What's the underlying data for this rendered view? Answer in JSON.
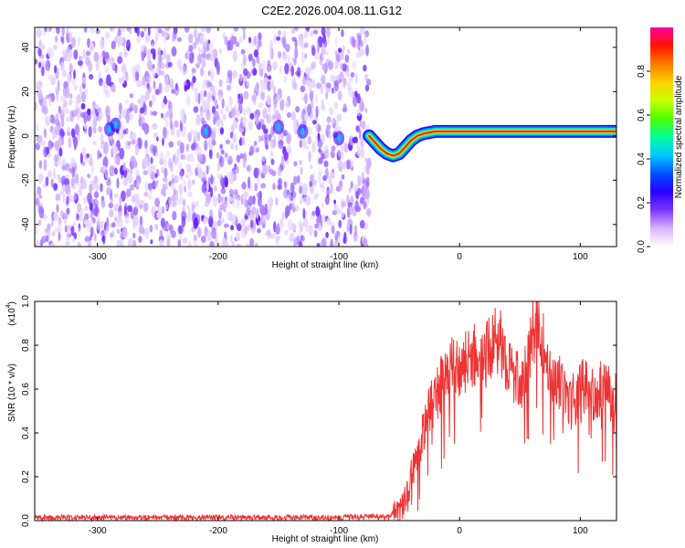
{
  "title": "C2E2.2026.004.08.11.G12",
  "chart_data": [
    {
      "type": "heatmap",
      "xlabel": "Height of straight line (km)",
      "ylabel": "Frequency (Hz)",
      "xlim": [
        -352,
        130
      ],
      "ylim": [
        -50,
        49
      ],
      "xticks": [
        -300,
        -200,
        -100,
        0,
        100
      ],
      "yticks": [
        -40,
        -20,
        0,
        20,
        40
      ],
      "colorbar": {
        "label": "Normalized spectral amplitude",
        "range": [
          0,
          1
        ],
        "ticks": [
          "0.0",
          "0.2",
          "0.4",
          "0.6",
          "0.8"
        ],
        "colors": [
          "#ffffff",
          "#d7b5ff",
          "#7a36ff",
          "#2a00ff",
          "#0050ff",
          "#00c8ff",
          "#00ff9a",
          "#4dff00",
          "#c8ff00",
          "#ffd200",
          "#ff7a00",
          "#ff1400",
          "#ff00a0"
        ]
      },
      "noise_region_x": [
        -352,
        -75
      ],
      "signal_trace": {
        "x": [
          -75,
          -70,
          -65,
          -60,
          -55,
          -50,
          -45,
          -40,
          -35,
          -30,
          -20,
          -10,
          0,
          20,
          40,
          60,
          80,
          100,
          130
        ],
        "freq": [
          0,
          -3,
          -6,
          -8,
          -9,
          -8,
          -5,
          -2,
          0,
          1,
          2,
          2,
          2,
          2,
          2,
          2,
          2,
          2,
          2
        ]
      }
    },
    {
      "type": "line",
      "xlabel": "Height of straight line (km)",
      "ylabel": "SNR (10 * v/v)",
      "multiplier_label": "(x10",
      "multiplier_exp": "4",
      "xlim": [
        -352,
        130
      ],
      "ylim": [
        0,
        1
      ],
      "xticks": [
        -300,
        -200,
        -100,
        0,
        100
      ],
      "yticks": [
        "0.0",
        "0.2",
        "0.4",
        "0.6",
        "0.8",
        "1.0"
      ],
      "series": [
        {
          "color": "#ee3333",
          "envelope": {
            "x": [
              -352,
              -100,
              -60,
              -50,
              -45,
              -40,
              -35,
              -30,
              -25,
              -20,
              -15,
              -10,
              -5,
              0,
              5,
              10,
              15,
              20,
              25,
              30,
              35,
              40,
              45,
              50,
              55,
              60,
              65,
              70,
              75,
              80,
              85,
              90,
              95,
              100,
              105,
              110,
              115,
              120,
              125,
              130
            ],
            "y": [
              0.015,
              0.015,
              0.02,
              0.04,
              0.1,
              0.2,
              0.3,
              0.4,
              0.5,
              0.58,
              0.62,
              0.68,
              0.7,
              0.68,
              0.72,
              0.74,
              0.76,
              0.74,
              0.78,
              0.82,
              0.8,
              0.72,
              0.66,
              0.62,
              0.68,
              0.85,
              0.93,
              0.78,
              0.68,
              0.66,
              0.6,
              0.5,
              0.58,
              0.6,
              0.62,
              0.58,
              0.6,
              0.62,
              0.58,
              0.6
            ]
          }
        }
      ]
    }
  ]
}
